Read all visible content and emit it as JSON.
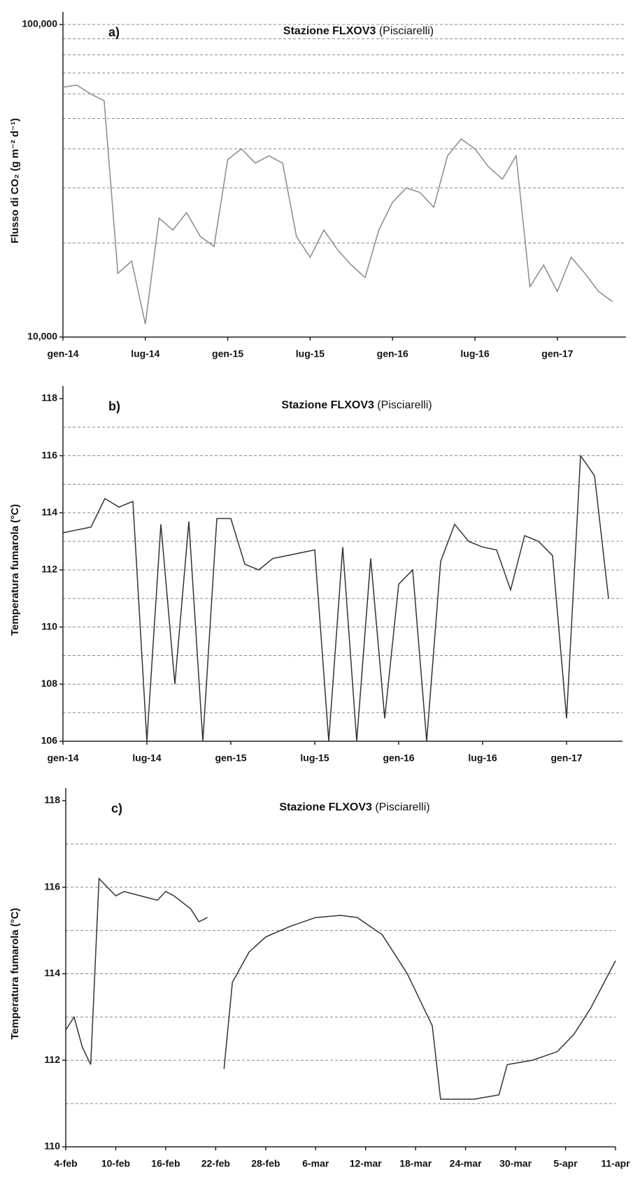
{
  "chart_data": [
    {
      "type": "line",
      "panel_label": "a)",
      "title": "Stazione FLXOV3",
      "title_note": "(Pisciarelli)",
      "ylabel": "Flusso di CO₂ (g m⁻² d⁻¹)",
      "log_scale": true,
      "color": "#8a8a8a",
      "ylim": [
        10000,
        100000
      ],
      "yticks": [
        {
          "value": 10000,
          "label": "10,000"
        },
        {
          "value": 100000,
          "label": "100,000"
        }
      ],
      "grid_lines": [
        20000,
        30000,
        40000,
        50000,
        60000,
        70000,
        80000,
        90000,
        100000
      ],
      "xlim": [
        "2014-01",
        "2017-06"
      ],
      "xticks": [
        {
          "value": "2014-01",
          "label": "gen-14"
        },
        {
          "value": "2014-07",
          "label": "lug-14"
        },
        {
          "value": "2015-01",
          "label": "gen-15"
        },
        {
          "value": "2015-07",
          "label": "lug-15"
        },
        {
          "value": "2016-01",
          "label": "gen-16"
        },
        {
          "value": "2016-07",
          "label": "lug-16"
        },
        {
          "value": "2017-01",
          "label": "gen-17"
        }
      ],
      "x": [
        "2014-01",
        "2014-02",
        "2014-03",
        "2014-04",
        "2014-05",
        "2014-06",
        "2014-07",
        "2014-08",
        "2014-09",
        "2014-10",
        "2014-11",
        "2014-12",
        "2015-01",
        "2015-02",
        "2015-03",
        "2015-04",
        "2015-05",
        "2015-06",
        "2015-07",
        "2015-08",
        "2015-09",
        "2015-10",
        "2015-11",
        "2015-12",
        "2016-01",
        "2016-02",
        "2016-03",
        "2016-04",
        "2016-05",
        "2016-06",
        "2016-07",
        "2016-08",
        "2016-09",
        "2016-10",
        "2016-11",
        "2016-12",
        "2017-01",
        "2017-02",
        "2017-03",
        "2017-04",
        "2017-05"
      ],
      "values": [
        63000,
        64000,
        60000,
        57000,
        16000,
        17500,
        11000,
        24000,
        22000,
        25000,
        21000,
        19500,
        37000,
        40000,
        36000,
        38000,
        36000,
        21000,
        18000,
        22000,
        19000,
        17000,
        15500,
        22000,
        27000,
        30000,
        29000,
        26000,
        38000,
        43000,
        40000,
        35000,
        32000,
        38000,
        14500,
        17000,
        14000,
        18000,
        16000,
        14000,
        13000
      ]
    },
    {
      "type": "line",
      "panel_label": "b)",
      "title": "Stazione FLXOV3",
      "title_note": "(Pisciarelli)",
      "ylabel": "Temperatura fumarola  (°C)",
      "log_scale": false,
      "color": "#333333",
      "ylim": [
        106,
        118
      ],
      "yticks": [
        106,
        108,
        110,
        112,
        114,
        116,
        118
      ],
      "grid_lines": [
        107,
        108,
        109,
        110,
        111,
        112,
        113,
        114,
        115,
        116,
        117
      ],
      "xlim": [
        "2014-01",
        "2017-05"
      ],
      "xticks": [
        {
          "value": "2014-01",
          "label": "gen-14"
        },
        {
          "value": "2014-07",
          "label": "lug-14"
        },
        {
          "value": "2015-01",
          "label": "gen-15"
        },
        {
          "value": "2015-07",
          "label": "lug-15"
        },
        {
          "value": "2016-01",
          "label": "gen-16"
        },
        {
          "value": "2016-07",
          "label": "lug-16"
        },
        {
          "value": "2017-01",
          "label": "gen-17"
        }
      ],
      "x": [
        "2014-01",
        "2014-02",
        "2014-03",
        "2014-04",
        "2014-05",
        "2014-06",
        "2014-07",
        "2014-08",
        "2014-09",
        "2014-10",
        "2014-11",
        "2014-12",
        "2015-01",
        "2015-02",
        "2015-03",
        "2015-04",
        "2015-05",
        "2015-06",
        "2015-07",
        "2015-08",
        "2015-09",
        "2015-10",
        "2015-11",
        "2015-12",
        "2016-01",
        "2016-02",
        "2016-03",
        "2016-04",
        "2016-05",
        "2016-06",
        "2016-07",
        "2016-08",
        "2016-09",
        "2016-10",
        "2016-11",
        "2016-12",
        "2017-01",
        "2017-02",
        "2017-03",
        "2017-04"
      ],
      "values": [
        113.3,
        113.4,
        113.5,
        114.5,
        114.2,
        114.4,
        106,
        113.6,
        108,
        113.7,
        106,
        113.8,
        113.8,
        112.2,
        112.0,
        112.4,
        112.5,
        112.6,
        112.7,
        106,
        112.8,
        106,
        112.4,
        106.8,
        111.5,
        112.0,
        106,
        112.3,
        113.6,
        113.0,
        112.8,
        112.7,
        111.3,
        113.2,
        113.0,
        112.5,
        106.8,
        116.0,
        115.3,
        111.0
      ]
    },
    {
      "type": "line",
      "panel_label": "c)",
      "title": "Stazione FLXOV3",
      "title_note": "(Pisciarelli)",
      "ylabel": "Temperatura fumarola  (°C)",
      "log_scale": false,
      "color": "#333333",
      "ylim": [
        110,
        118
      ],
      "yticks": [
        110,
        112,
        114,
        116,
        118
      ],
      "grid_lines": [
        111,
        112,
        113,
        114,
        115,
        116,
        117
      ],
      "xlim": [
        "02-04",
        "04-11"
      ],
      "xticks": [
        {
          "value": "02-04",
          "label": "4-feb"
        },
        {
          "value": "02-10",
          "label": "10-feb"
        },
        {
          "value": "02-16",
          "label": "16-feb"
        },
        {
          "value": "02-22",
          "label": "22-feb"
        },
        {
          "value": "02-28",
          "label": "28-feb"
        },
        {
          "value": "03-06",
          "label": "6-mar"
        },
        {
          "value": "03-12",
          "label": "12-mar"
        },
        {
          "value": "03-18",
          "label": "18-mar"
        },
        {
          "value": "03-24",
          "label": "24-mar"
        },
        {
          "value": "03-30",
          "label": "30-mar"
        },
        {
          "value": "04-05",
          "label": "5-apr"
        },
        {
          "value": "04-11",
          "label": "11-apr"
        }
      ],
      "x": [
        "02-04",
        "02-05",
        "02-06",
        "02-07",
        "02-08",
        "02-09",
        "02-10",
        "02-11",
        "02-13",
        "02-15",
        "02-16",
        "02-17",
        "02-19",
        "02-20",
        "02-21",
        "02-22",
        "02-23",
        "02-24",
        "02-26",
        "02-28",
        "03-03",
        "03-06",
        "03-09",
        "03-11",
        "03-14",
        "03-17",
        "03-20",
        "03-21",
        "03-25",
        "03-28",
        "03-29",
        "04-01",
        "04-04",
        "04-06",
        "04-08",
        "04-11"
      ],
      "values": [
        112.7,
        113.0,
        112.3,
        111.9,
        116.2,
        116.0,
        115.8,
        115.9,
        115.8,
        115.7,
        115.9,
        115.8,
        115.5,
        115.2,
        115.3,
        null,
        111.8,
        113.8,
        114.5,
        114.85,
        115.1,
        115.3,
        115.35,
        115.3,
        114.9,
        114.0,
        112.8,
        111.1,
        111.1,
        111.2,
        111.9,
        112.0,
        112.2,
        112.6,
        113.2,
        114.3
      ]
    }
  ]
}
